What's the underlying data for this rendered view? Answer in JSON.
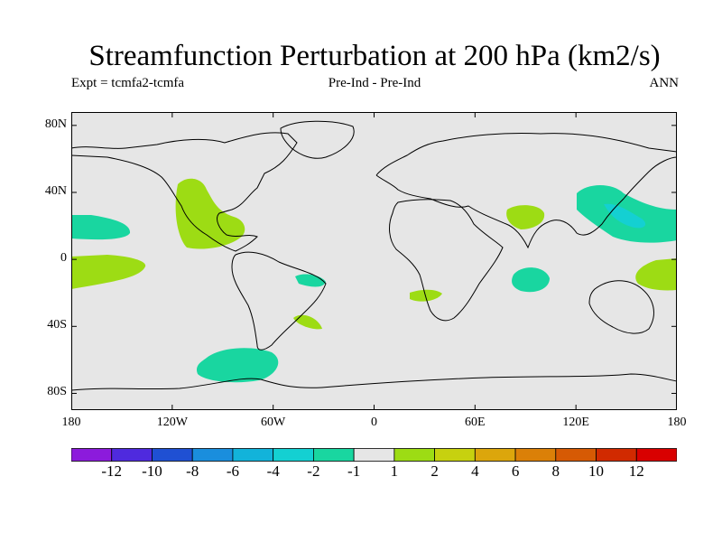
{
  "title": "Streamfunction Perturbation at 200 hPa (km2/s)",
  "subtitle_left": "Expt = tcmfa2-tcmfa",
  "subtitle_center": "Pre-Ind - Pre-Ind",
  "subtitle_right": "ANN",
  "y_ticks": [
    {
      "lat": 80,
      "label": "80N"
    },
    {
      "lat": 40,
      "label": "40N"
    },
    {
      "lat": 0,
      "label": "0"
    },
    {
      "lat": -40,
      "label": "40S"
    },
    {
      "lat": -80,
      "label": "80S"
    }
  ],
  "x_ticks": [
    {
      "lon": -180,
      "label": "180"
    },
    {
      "lon": -120,
      "label": "120W"
    },
    {
      "lon": -60,
      "label": "60W"
    },
    {
      "lon": 0,
      "label": "0"
    },
    {
      "lon": 60,
      "label": "60E"
    },
    {
      "lon": 120,
      "label": "120E"
    },
    {
      "lon": 180,
      "label": "180"
    }
  ],
  "lat_range": [
    -90,
    88
  ],
  "lon_range": [
    -180,
    180
  ],
  "colorbar": {
    "colors": [
      "#8c1bdc",
      "#4f2ade",
      "#1f50d3",
      "#1a8edd",
      "#12b3da",
      "#14d0d2",
      "#19d6a0",
      "#e6e6e6",
      "#9ddc14",
      "#c7d10f",
      "#dca60c",
      "#db8008",
      "#d65a04",
      "#d12a00",
      "#d90000"
    ],
    "labels": [
      "-12",
      "-10",
      "-8",
      "-6",
      "-4",
      "-2",
      "-1",
      "1",
      "2",
      "4",
      "6",
      "8",
      "10",
      "12"
    ]
  },
  "colors": {
    "neutral": "#e6e6e6",
    "neg1": "#19d6a0",
    "neg2": "#14d0d2",
    "pos1": "#9ddc14"
  }
}
